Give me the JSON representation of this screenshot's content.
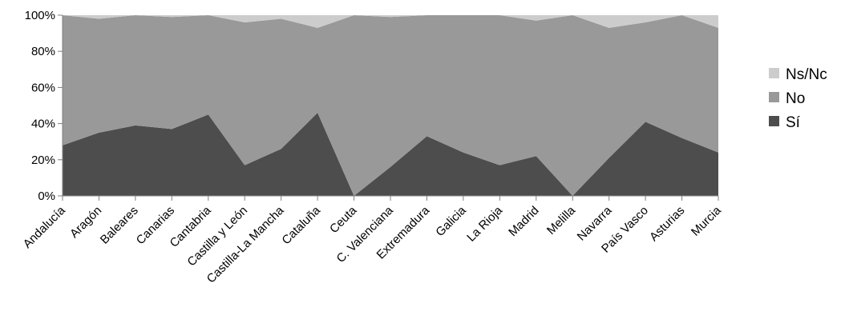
{
  "chart_data": {
    "type": "area",
    "stacked": "percent",
    "categories": [
      "Andalucía",
      "Aragón",
      "Baleares",
      "Canarias",
      "Cantabria",
      "Castilla y León",
      "Castilla-La Mancha",
      "Cataluña",
      "Ceuta",
      "C. Valenciana",
      "Extremadura",
      "Galicia",
      "La Rioja",
      "Madrid",
      "Melilla",
      "Navarra",
      "País Vasco",
      "Asturias",
      "Murcia"
    ],
    "series": [
      {
        "name": "Sí",
        "color": "#4d4d4d",
        "values": [
          28,
          35,
          39,
          37,
          45,
          17,
          26,
          46,
          0,
          16,
          33,
          24,
          17,
          22,
          0,
          21,
          41,
          32,
          24
        ]
      },
      {
        "name": "No",
        "color": "#999999",
        "values": [
          72,
          63,
          61,
          62,
          55,
          79,
          72,
          47,
          100,
          83,
          67,
          76,
          83,
          75,
          100,
          72,
          55,
          68,
          69
        ]
      },
      {
        "name": "Ns/Nc",
        "color": "#cccccc",
        "values": [
          0,
          2,
          0,
          1,
          0,
          4,
          2,
          7,
          0,
          1,
          0,
          0,
          0,
          3,
          0,
          7,
          4,
          0,
          7
        ]
      }
    ],
    "ylim": [
      0,
      100
    ],
    "yticks": [
      "0%",
      "20%",
      "40%",
      "60%",
      "80%",
      "100%"
    ],
    "legend": {
      "position": "right",
      "order": [
        "Ns/Nc",
        "No",
        "Sí"
      ]
    },
    "grid": false
  }
}
